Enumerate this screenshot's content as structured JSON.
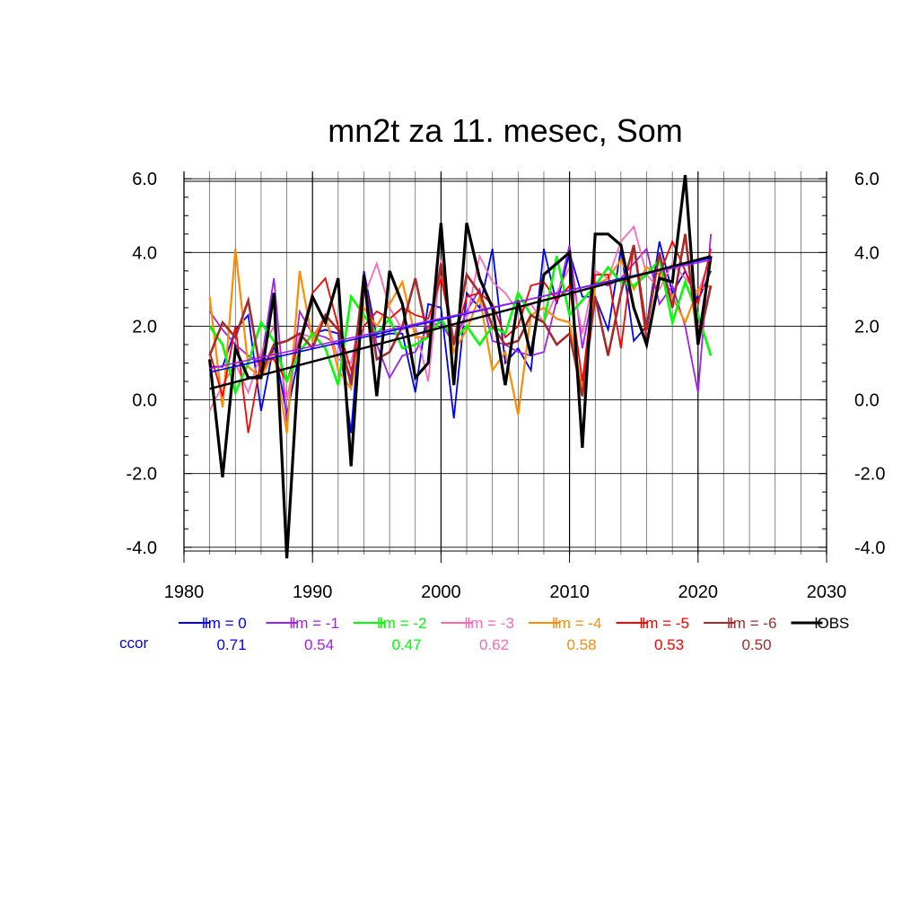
{
  "chart_data": {
    "type": "line",
    "title": "mn2t za 11. mesec, Som",
    "xlabel": "",
    "ylabel": "",
    "xlim": [
      1980,
      2030
    ],
    "ylim": [
      -4.2,
      6.2
    ],
    "xticks": [
      "1980",
      "1990",
      "2000",
      "2010",
      "2020",
      "2030"
    ],
    "yticks": [
      "-4.0",
      "-2.0",
      "0.0",
      "2.0",
      "4.0",
      "6.0"
    ],
    "grid": true,
    "legend_position": "bottom",
    "ccor_label": "ccor",
    "x": [
      1982,
      1983,
      1984,
      1985,
      1986,
      1987,
      1988,
      1989,
      1990,
      1991,
      1992,
      1993,
      1994,
      1995,
      1996,
      1997,
      1998,
      1999,
      2000,
      2001,
      2002,
      2003,
      2004,
      2005,
      2006,
      2007,
      2008,
      2009,
      2010,
      2011,
      2012,
      2013,
      2014,
      2015,
      2016,
      2017,
      2018,
      2019,
      2020,
      2021
    ],
    "series": [
      {
        "name": "lm = 0",
        "color": "#0000ff",
        "ccor": "0.71",
        "width": 1.8,
        "values": [
          0.9,
          0.9,
          1.9,
          2.3,
          -0.3,
          1.5,
          -0.4,
          1.3,
          1.8,
          1.9,
          1.8,
          -0.9,
          3.5,
          1.7,
          1.8,
          1.8,
          0.2,
          2.6,
          2.5,
          -0.5,
          2.9,
          2.5,
          4.1,
          1.0,
          1.4,
          0.8,
          4.1,
          2.6,
          4.0,
          2.8,
          2.8,
          1.9,
          4.1,
          1.6,
          2.0,
          4.3,
          2.9,
          3.5,
          2.7,
          3.5
        ],
        "trend": [
          0.75,
          3.85
        ]
      },
      {
        "name": "lm = -1",
        "color": "#a020f0",
        "ccor": "0.54",
        "width": 1.8,
        "values": [
          2.4,
          1.9,
          1.5,
          1.2,
          1.0,
          3.3,
          -0.6,
          2.4,
          1.8,
          1.7,
          1.5,
          0.6,
          3.2,
          1.5,
          0.6,
          1.2,
          1.3,
          2.0,
          2.1,
          1.5,
          2.4,
          3.0,
          1.6,
          1.5,
          1.3,
          1.2,
          1.3,
          2.7,
          4.2,
          1.4,
          3.2,
          3.1,
          3.3,
          3.7,
          4.1,
          2.6,
          3.1,
          2.0,
          0.2,
          4.5
        ],
        "trend": [
          0.85,
          3.8
        ]
      },
      {
        "name": "lm = -2",
        "color": "#00ff00",
        "ccor": "0.47",
        "width": 2.6,
        "values": [
          2.0,
          1.5,
          0.2,
          1.0,
          2.1,
          1.6,
          0.5,
          1.3,
          1.8,
          1.4,
          0.4,
          2.8,
          2.3,
          1.8,
          2.2,
          1.4,
          1.5,
          1.7,
          2.2,
          1.6,
          2.0,
          1.5,
          2.0,
          1.8,
          2.9,
          2.3,
          2.1,
          3.9,
          2.3,
          2.7,
          3.1,
          3.6,
          3.2,
          3.1,
          3.4,
          3.8,
          2.1,
          3.2,
          2.3,
          1.2
        ],
        "trend": null
      },
      {
        "name": "lm = -3",
        "color": "#ff69b4",
        "ccor": "0.62",
        "width": 1.8,
        "values": [
          -0.3,
          0.4,
          1.0,
          0.2,
          1.3,
          2.0,
          0.0,
          1.8,
          1.7,
          2.3,
          1.1,
          1.0,
          2.8,
          3.7,
          2.5,
          1.9,
          2.0,
          0.5,
          3.8,
          1.6,
          2.2,
          3.9,
          3.2,
          2.9,
          2.4,
          2.6,
          2.1,
          2.9,
          3.6,
          1.8,
          3.5,
          3.3,
          4.3,
          4.7,
          3.4,
          3.0,
          3.7,
          3.3,
          2.9,
          3.9
        ],
        "trend": null
      },
      {
        "name": "lm = -4",
        "color": "#ff8c00",
        "ccor": "0.58",
        "width": 2.2,
        "values": [
          2.8,
          -0.2,
          4.1,
          0.9,
          0.6,
          1.3,
          -0.9,
          3.5,
          1.6,
          2.3,
          0.8,
          0.3,
          2.5,
          2.0,
          2.6,
          3.2,
          1.7,
          1.7,
          3.7,
          1.3,
          1.9,
          2.8,
          0.8,
          1.3,
          -0.4,
          2.3,
          2.5,
          2.2,
          2.1,
          0.3,
          3.1,
          3.3,
          3.8,
          3.0,
          3.6,
          3.4,
          2.8,
          2.1,
          3.0,
          3.1
        ],
        "trend": null
      },
      {
        "name": "lm = -5",
        "color": "#ff0000",
        "ccor": "0.53",
        "width": 1.8,
        "values": [
          1.3,
          0.1,
          2.0,
          -0.9,
          1.1,
          1.1,
          0.5,
          1.6,
          2.9,
          3.3,
          2.0,
          0.8,
          2.0,
          2.4,
          2.2,
          2.5,
          2.3,
          2.2,
          3.3,
          1.6,
          2.8,
          2.9,
          2.6,
          1.7,
          2.0,
          3.1,
          3.2,
          2.7,
          3.1,
          0.5,
          3.4,
          3.4,
          1.4,
          4.2,
          1.6,
          3.4,
          4.3,
          3.5,
          2.6,
          4.1
        ],
        "trend": null
      },
      {
        "name": "lm = -6",
        "color": "#a52a2a",
        "ccor": "0.50",
        "width": 2.6,
        "values": [
          1.2,
          2.1,
          1.7,
          2.7,
          0.7,
          1.5,
          1.6,
          1.8,
          1.4,
          2.3,
          1.9,
          0.4,
          3.4,
          1.1,
          1.3,
          2.0,
          3.3,
          1.7,
          3.7,
          1.5,
          3.4,
          2.9,
          2.0,
          1.5,
          1.6,
          2.3,
          2.1,
          1.5,
          1.8,
          0.1,
          2.8,
          1.2,
          2.9,
          4.2,
          1.9,
          4.0,
          2.5,
          4.5,
          1.5,
          3.1
        ],
        "trend": null
      },
      {
        "name": "OBS",
        "color": "#000000",
        "ccor": "",
        "width": 3.2,
        "values": [
          1.1,
          -2.1,
          1.4,
          0.6,
          0.6,
          2.9,
          -4.3,
          1.5,
          2.8,
          2.1,
          3.3,
          -1.8,
          3.4,
          0.1,
          3.5,
          2.6,
          0.6,
          1.0,
          4.8,
          0.4,
          4.8,
          3.3,
          2.5,
          0.4,
          2.7,
          1.2,
          3.4,
          3.7,
          4.0,
          -1.3,
          4.5,
          4.5,
          4.2,
          2.5,
          1.5,
          3.3,
          3.2,
          6.1,
          1.5,
          3.9
        ],
        "trend": [
          0.3,
          3.9
        ]
      }
    ]
  }
}
